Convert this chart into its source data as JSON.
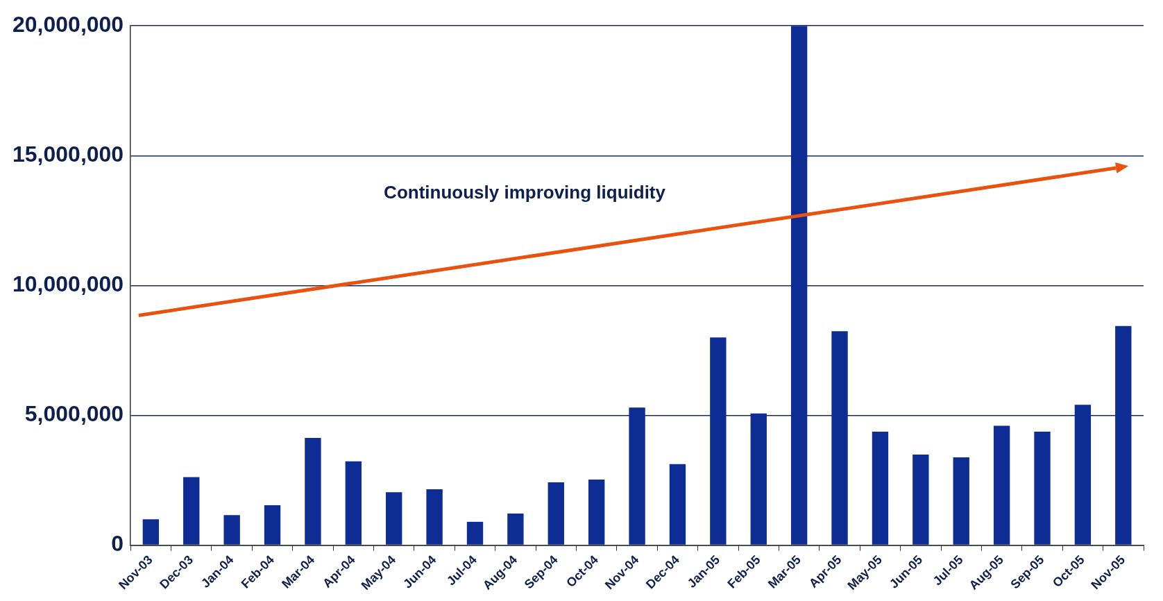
{
  "chart_data": {
    "type": "bar",
    "categories": [
      "Nov-03",
      "Dec-03",
      "Jan-04",
      "Feb-04",
      "Mar-04",
      "Apr-04",
      "May-04",
      "Jun-04",
      "Jul-04",
      "Aug-04",
      "Sep-04",
      "Oct-04",
      "Nov-04",
      "Dec-04",
      "Jan-05",
      "Feb-05",
      "Mar-05",
      "Apr-05",
      "May-05",
      "Jun-05",
      "Jul-05",
      "Aug-05",
      "Sep-05",
      "Oct-05",
      "Nov-05"
    ],
    "values": [
      1000000,
      2620000,
      1160000,
      1540000,
      4130000,
      3230000,
      2040000,
      2150000,
      900000,
      1220000,
      2420000,
      2530000,
      5300000,
      3120000,
      8000000,
      5070000,
      20000000,
      8240000,
      4370000,
      3490000,
      3380000,
      4600000,
      4370000,
      5410000,
      8440000
    ],
    "color": "#0d2c94",
    "ylim": [
      0,
      20000000
    ],
    "yticks": [
      {
        "value": 0,
        "label": "0"
      },
      {
        "value": 5000000,
        "label": "5,000,000"
      },
      {
        "value": 10000000,
        "label": "10,000,000"
      },
      {
        "value": 15000000,
        "label": "15,000,000"
      },
      {
        "value": 20000000,
        "label": "20,000,000"
      }
    ],
    "grid": "y",
    "legend": false,
    "annotations": [
      "Continuously improving liquidity"
    ]
  }
}
